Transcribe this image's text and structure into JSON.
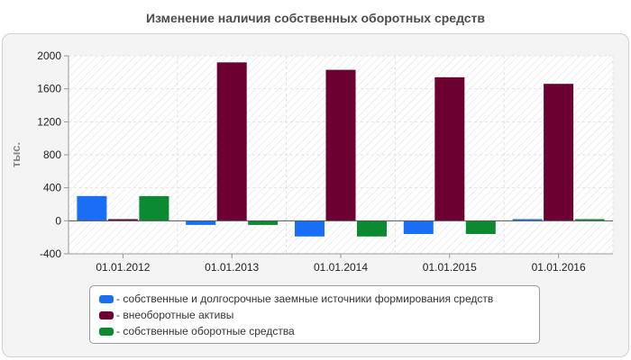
{
  "chart_data": {
    "type": "bar",
    "title": "Изменение наличия собственных оборотных средств",
    "ylabel": "тыс.",
    "xlabel": "",
    "categories": [
      "01.01.2012",
      "01.01.2013",
      "01.01.2014",
      "01.01.2015",
      "01.01.2016"
    ],
    "ylim": [
      -400,
      2000
    ],
    "yticks": [
      -400,
      0,
      400,
      800,
      1200,
      1600,
      2000
    ],
    "grid": true,
    "legend_position": "bottom",
    "series": [
      {
        "name": "- собственные и долгосрочные заемные источники формирования средств",
        "color": "#1a6ef5",
        "values": [
          300,
          -50,
          -190,
          -160,
          20
        ]
      },
      {
        "name": "- внеоборотные активы",
        "color": "#6b0031",
        "values": [
          20,
          1920,
          1830,
          1740,
          1660
        ]
      },
      {
        "name": "- собственные оборотные средства",
        "color": "#0c8a32",
        "values": [
          300,
          -50,
          -190,
          -160,
          20
        ]
      }
    ]
  }
}
